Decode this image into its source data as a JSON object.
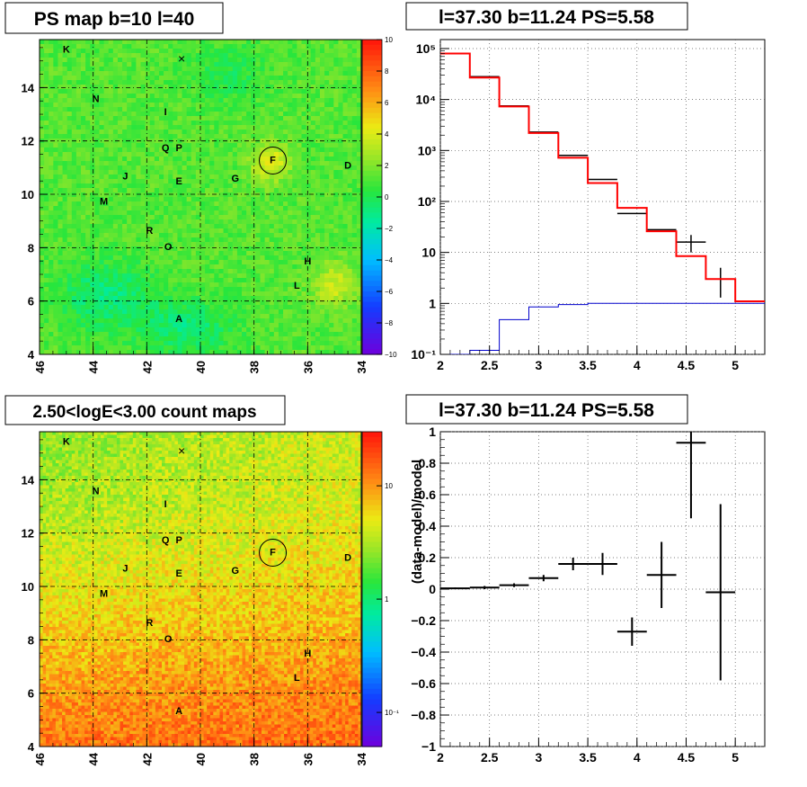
{
  "panels": {
    "map_ps": {
      "title": "PS map b=10 l=40",
      "x_ticks": [
        "46",
        "44",
        "42",
        "40",
        "38",
        "36",
        "34"
      ],
      "y_ticks": [
        "4",
        "6",
        "8",
        "10",
        "12",
        "14"
      ],
      "x_range": [
        46,
        34
      ],
      "y_range": [
        4,
        15.8
      ],
      "colorbar_ticks": [
        "10",
        "8",
        "6",
        "4",
        "2",
        "0",
        "−2",
        "−4",
        "−6",
        "−8",
        "−10"
      ],
      "colorbar_range": [
        -10,
        10
      ],
      "colorbar_palette": "rainbow",
      "sources": [
        {
          "label": "K",
          "l": 45.0,
          "b": 15.45
        },
        {
          "label": "N",
          "l": 43.9,
          "b": 13.6
        },
        {
          "label": "I",
          "l": 41.3,
          "b": 13.1
        },
        {
          "label": "Q",
          "l": 41.3,
          "b": 11.75
        },
        {
          "label": "P",
          "l": 40.8,
          "b": 11.75
        },
        {
          "label": "F",
          "l": 37.3,
          "b": 11.3
        },
        {
          "label": "D",
          "l": 34.5,
          "b": 11.1
        },
        {
          "label": "J",
          "l": 42.8,
          "b": 10.7
        },
        {
          "label": "E",
          "l": 40.8,
          "b": 10.5
        },
        {
          "label": "G",
          "l": 38.7,
          "b": 10.6
        },
        {
          "label": "M",
          "l": 43.6,
          "b": 9.75
        },
        {
          "label": "R",
          "l": 41.9,
          "b": 8.65
        },
        {
          "label": "O",
          "l": 41.2,
          "b": 8.05
        },
        {
          "label": "H",
          "l": 36.0,
          "b": 7.5
        },
        {
          "label": "L",
          "l": 36.4,
          "b": 6.6
        },
        {
          "label": "A",
          "l": 40.8,
          "b": 5.35
        }
      ],
      "cross_marker": {
        "l": 40.7,
        "b": 15.1
      },
      "circle_marker": {
        "l": 37.3,
        "b": 11.3
      }
    },
    "map_counts": {
      "title": "2.50<logE<3.00 count maps",
      "x_ticks": [
        "46",
        "44",
        "42",
        "40",
        "38",
        "36",
        "34"
      ],
      "y_ticks": [
        "4",
        "6",
        "8",
        "10",
        "12",
        "14"
      ],
      "colorbar_ticks": [
        "10",
        "1",
        "10⁻¹"
      ],
      "colorbar_range_log": [
        0.05,
        30
      ],
      "colorbar_palette": "rainbow"
    }
  },
  "chart_data": [
    {
      "type": "step",
      "title": "l=37.30 b=11.24 PS=5.58",
      "xlabel": "",
      "ylabel": "",
      "ylog": true,
      "xlim": [
        2,
        5.3
      ],
      "ylim": [
        0.1,
        150000
      ],
      "x_ticks": [
        "2",
        "2.5",
        "3",
        "3.5",
        "4",
        "4.5",
        "5"
      ],
      "y_ticks": [
        "10⁻¹",
        "1",
        "10",
        "10²",
        "10³",
        "10⁴",
        "10⁵"
      ],
      "grid": true,
      "bin_edges": [
        2.0,
        2.3,
        2.6,
        2.9,
        3.2,
        3.5,
        3.8,
        4.1,
        4.4,
        4.7,
        5.0,
        5.3
      ],
      "series": [
        {
          "color": "#000000",
          "style": "data-points",
          "values": [
            80000,
            28000,
            7500,
            2300,
            800,
            270,
            58,
            28,
            16,
            3.0,
            null
          ],
          "err_low": [
            0,
            0,
            0,
            0,
            0,
            0,
            0,
            0,
            6,
            1.7,
            null
          ],
          "err_high": [
            0,
            0,
            0,
            0,
            0,
            0,
            0,
            0,
            6,
            2.0,
            null
          ]
        },
        {
          "color": "#ff0000",
          "style": "histogram",
          "values": [
            80000,
            27000,
            7300,
            2200,
            720,
            230,
            75,
            26,
            8.5,
            3.0,
            1.1
          ]
        },
        {
          "color": "#0000cc",
          "style": "histogram",
          "values": [
            0.1,
            0.12,
            0.48,
            0.85,
            0.95,
            1.0,
            1.0,
            1.0,
            1.0,
            1.0,
            1.0
          ]
        }
      ]
    },
    {
      "type": "scatter",
      "title": "l=37.30 b=11.24 PS=5.58",
      "xlabel": "",
      "ylabel": "(data-model)/model",
      "xlim": [
        2,
        5.3
      ],
      "ylim": [
        -1,
        1
      ],
      "x_ticks": [
        "2",
        "2.5",
        "3",
        "3.5",
        "4",
        "4.5",
        "5"
      ],
      "y_ticks": [
        "−1",
        "−0.8",
        "−0.6",
        "−0.4",
        "−0.2",
        "0",
        "0.2",
        "0.4",
        "0.6",
        "0.8",
        "1"
      ],
      "grid": true,
      "points": [
        {
          "x": 2.15,
          "xerr": 0.15,
          "y": 0.005,
          "yerr": 0.005
        },
        {
          "x": 2.45,
          "xerr": 0.15,
          "y": 0.01,
          "yerr": 0.01
        },
        {
          "x": 2.75,
          "xerr": 0.15,
          "y": 0.025,
          "yerr": 0.012
        },
        {
          "x": 3.05,
          "xerr": 0.15,
          "y": 0.07,
          "yerr": 0.02
        },
        {
          "x": 3.35,
          "xerr": 0.15,
          "y": 0.16,
          "yerr": 0.04
        },
        {
          "x": 3.65,
          "xerr": 0.15,
          "y": 0.16,
          "yerr": 0.07
        },
        {
          "x": 3.95,
          "xerr": 0.15,
          "y": -0.27,
          "yerr": 0.09
        },
        {
          "x": 4.25,
          "xerr": 0.15,
          "y": 0.09,
          "yerr": 0.21
        },
        {
          "x": 4.55,
          "xerr": 0.15,
          "y": 0.93,
          "yerr": 0.48
        },
        {
          "x": 4.85,
          "xerr": 0.15,
          "y": -0.02,
          "yerr": 0.56
        }
      ]
    }
  ]
}
